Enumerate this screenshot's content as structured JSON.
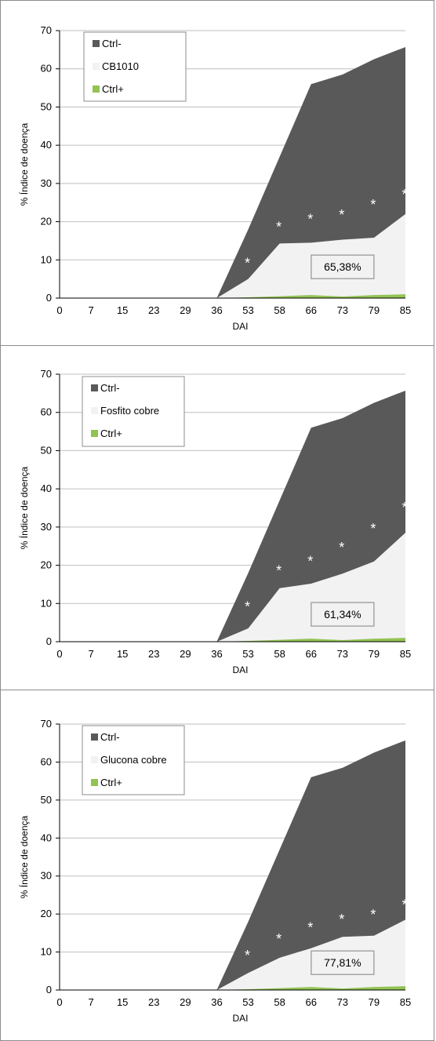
{
  "colors": {
    "ctrl_neg": "#595959",
    "treatment": "#f2f2f2",
    "ctrl_pos": "#92c353",
    "star": "#ffffff",
    "grid": "#bfbfbf",
    "box_border": "#a6a6a6"
  },
  "chart_data": [
    {
      "type": "area",
      "categories": [
        "0",
        "7",
        "15",
        "23",
        "29",
        "36",
        "53",
        "58",
        "66",
        "73",
        "79",
        "85"
      ],
      "xlabel": "DAI",
      "ylabel": "% Índice de doença",
      "ylim": [
        0,
        70
      ],
      "yticks": [
        0,
        10,
        20,
        30,
        40,
        50,
        60,
        70
      ],
      "grid": true,
      "legend_position": "top-left",
      "series": [
        {
          "name": "Ctrl-",
          "color_key": "ctrl_neg",
          "values": [
            0,
            0,
            0,
            0,
            0,
            0,
            18,
            37,
            56,
            58.5,
            62.5,
            65.7
          ]
        },
        {
          "name": "CB1010",
          "color_key": "treatment",
          "values": [
            0,
            0,
            0,
            0,
            0,
            0,
            5,
            14.3,
            14.5,
            15.3,
            15.8,
            22
          ]
        },
        {
          "name": "Ctrl+",
          "color_key": "ctrl_pos",
          "values": [
            0,
            0,
            0,
            0,
            0,
            0,
            0.2,
            0.5,
            0.8,
            0.4,
            0.8,
            1
          ]
        }
      ],
      "significance": {
        "symbol": "*",
        "categories": [
          "53",
          "58",
          "66",
          "73",
          "79",
          "85"
        ],
        "values": [
          9.5,
          19,
          21,
          22.2,
          24.8,
          27.5
        ]
      },
      "annotation": {
        "text": "65,38%",
        "x": "73",
        "y": 5.5
      }
    },
    {
      "type": "area",
      "categories": [
        "0",
        "7",
        "15",
        "23",
        "29",
        "36",
        "53",
        "58",
        "66",
        "73",
        "79",
        "85"
      ],
      "xlabel": "DAI",
      "ylabel": "% Índice de doença",
      "ylim": [
        0,
        70
      ],
      "yticks": [
        0,
        10,
        20,
        30,
        40,
        50,
        60,
        70
      ],
      "grid": true,
      "legend_position": "top-left",
      "series": [
        {
          "name": "Ctrl-",
          "color_key": "ctrl_neg",
          "values": [
            0,
            0,
            0,
            0,
            0,
            0,
            18,
            37,
            56,
            58.5,
            62.5,
            65.7
          ]
        },
        {
          "name": "Fosfito cobre",
          "color_key": "treatment",
          "values": [
            0,
            0,
            0,
            0,
            0,
            0,
            3.5,
            14,
            15.2,
            17.8,
            21,
            28.5
          ]
        },
        {
          "name": "Ctrl+",
          "color_key": "ctrl_pos",
          "values": [
            0,
            0,
            0,
            0,
            0,
            0,
            0.2,
            0.5,
            0.8,
            0.4,
            0.8,
            1
          ]
        }
      ],
      "significance": {
        "symbol": "*",
        "categories": [
          "53",
          "58",
          "66",
          "73",
          "79",
          "85"
        ],
        "values": [
          9.5,
          19,
          21.5,
          25,
          30,
          35.5
        ]
      },
      "annotation": {
        "text": "61,34%",
        "x": "73",
        "y": 4.5
      }
    },
    {
      "type": "area",
      "categories": [
        "0",
        "7",
        "15",
        "23",
        "29",
        "36",
        "53",
        "58",
        "66",
        "73",
        "79",
        "85"
      ],
      "xlabel": "DAI",
      "ylabel": "% Índice de doença",
      "ylim": [
        0,
        70
      ],
      "yticks": [
        0,
        10,
        20,
        30,
        40,
        50,
        60,
        70
      ],
      "grid": true,
      "legend_position": "top-left",
      "series": [
        {
          "name": "Ctrl-",
          "color_key": "ctrl_neg",
          "values": [
            0,
            0,
            0,
            0,
            0,
            0,
            18,
            37,
            56,
            58.5,
            62.5,
            65.7
          ]
        },
        {
          "name": "Glucona cobre",
          "color_key": "treatment",
          "values": [
            0,
            0,
            0,
            0,
            0,
            0,
            4.5,
            8.5,
            11,
            14,
            14.3,
            18.5
          ]
        },
        {
          "name": "Ctrl+",
          "color_key": "ctrl_pos",
          "values": [
            0,
            0,
            0,
            0,
            0,
            0,
            0.2,
            0.5,
            0.8,
            0.4,
            0.8,
            1
          ]
        }
      ],
      "significance": {
        "symbol": "*",
        "categories": [
          "53",
          "58",
          "66",
          "73",
          "79",
          "85"
        ],
        "values": [
          9.5,
          13.8,
          16.8,
          19,
          20.2,
          22.8
        ]
      },
      "annotation": {
        "text": "77,81%",
        "x": "73",
        "y": 4.5
      }
    }
  ]
}
